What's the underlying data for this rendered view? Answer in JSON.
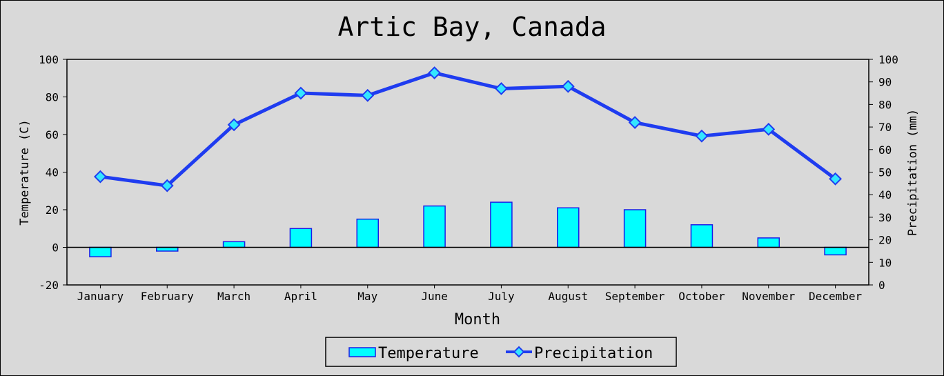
{
  "chart_data": {
    "type": "bar",
    "title": "Artic Bay, Canada",
    "xlabel": "Month",
    "ylabel": "Temperature (C)",
    "y2label": "Precipitation (mm)",
    "categories": [
      "January",
      "February",
      "March",
      "April",
      "May",
      "June",
      "July",
      "August",
      "September",
      "October",
      "November",
      "December"
    ],
    "ylim": [
      -20,
      100
    ],
    "y2lim": [
      0,
      100
    ],
    "yticks": [
      "100",
      "80",
      "60",
      "40",
      "20",
      "0",
      "-20"
    ],
    "y2ticks": [
      "100",
      "90",
      "80",
      "70",
      "60",
      "50",
      "40",
      "30",
      "20",
      "10",
      "0"
    ],
    "series": [
      {
        "name": "Temperature",
        "type": "bar",
        "axis": "left",
        "values": [
          -5,
          -2,
          3,
          10,
          15,
          22,
          24,
          21,
          20,
          12,
          5,
          -4
        ]
      },
      {
        "name": "Precipitation",
        "type": "line",
        "axis": "right",
        "values": [
          48,
          44,
          71,
          85,
          84,
          94,
          87,
          88,
          72,
          66,
          69,
          47
        ]
      }
    ],
    "grid": false,
    "legend_position": "bottom",
    "colors": {
      "background": "#d9d9d9",
      "bar_fill": "#00ffff",
      "bar_stroke": "#1c1ce6",
      "line": "#1f3cf0",
      "marker_fill": "#33e6ff"
    }
  }
}
